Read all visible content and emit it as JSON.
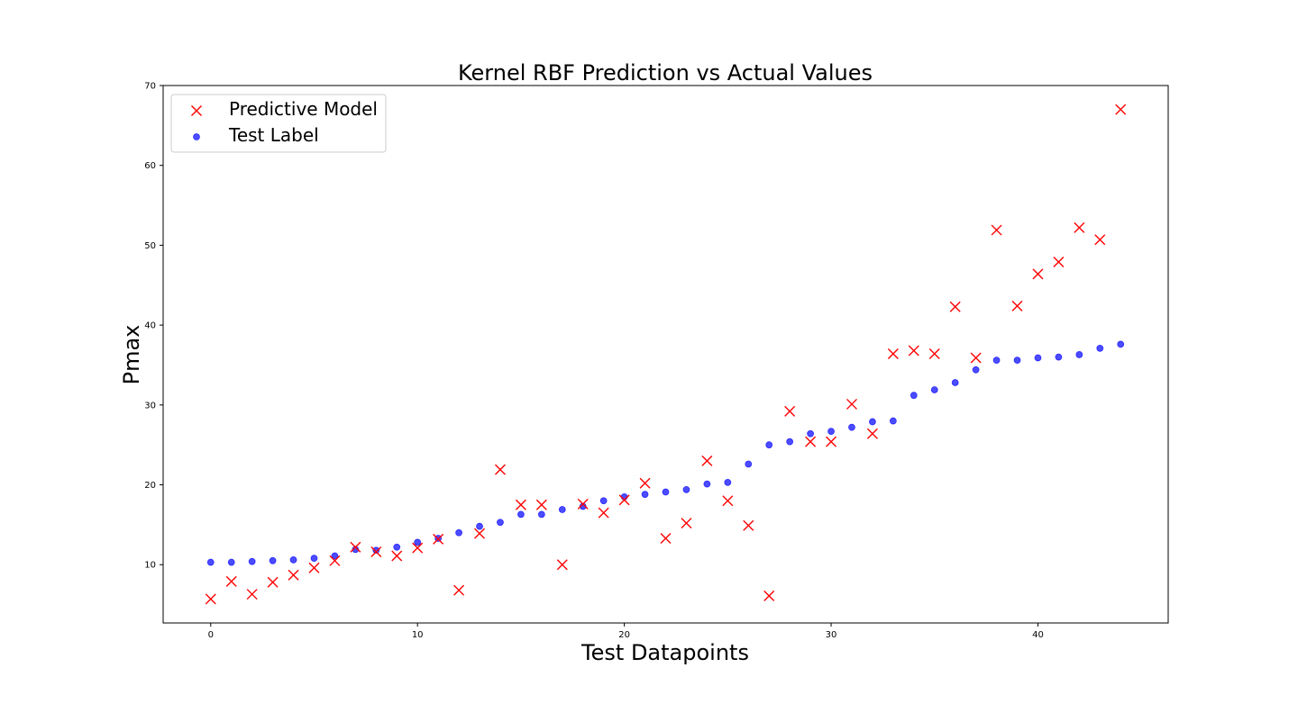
{
  "chart_data": {
    "type": "scatter",
    "title": "Kernel RBF Prediction vs Actual Values",
    "xlabel": "Test Datapoints",
    "ylabel": "Pmax",
    "xlim": [
      -2.3,
      46.3
    ],
    "ylim": [
      2.7,
      70
    ],
    "xticks": [
      0,
      10,
      20,
      30,
      40
    ],
    "yticks": [
      10,
      20,
      30,
      40,
      50,
      60,
      70
    ],
    "legend_position": "upper-left",
    "grid": false,
    "series": [
      {
        "name": "Predictive Model",
        "marker": "x",
        "color": "#ff0000",
        "x": [
          0,
          1,
          2,
          3,
          4,
          5,
          6,
          7,
          8,
          9,
          10,
          11,
          12,
          13,
          14,
          15,
          16,
          17,
          18,
          19,
          20,
          21,
          22,
          23,
          24,
          25,
          26,
          27,
          28,
          29,
          30,
          31,
          32,
          33,
          34,
          35,
          36,
          37,
          38,
          39,
          40,
          41,
          42,
          43,
          44
        ],
        "y": [
          5.7,
          7.9,
          6.3,
          7.8,
          8.7,
          9.6,
          10.5,
          12.2,
          11.6,
          11.1,
          12.1,
          13.2,
          6.8,
          13.9,
          21.9,
          17.5,
          17.5,
          10.0,
          17.6,
          16.5,
          18.1,
          20.2,
          13.3,
          15.2,
          23.0,
          18.0,
          14.9,
          6.1,
          29.2,
          25.4,
          25.4,
          30.1,
          26.4,
          36.4,
          36.8,
          36.4,
          42.3,
          35.9,
          51.9,
          42.4,
          46.4,
          47.9,
          52.2,
          50.7,
          67.0
        ]
      },
      {
        "name": "Test Label",
        "marker": "o",
        "color": "#0000ff",
        "x": [
          0,
          1,
          2,
          3,
          4,
          5,
          6,
          7,
          8,
          9,
          10,
          11,
          12,
          13,
          14,
          15,
          16,
          17,
          18,
          19,
          20,
          21,
          22,
          23,
          24,
          25,
          26,
          27,
          28,
          29,
          30,
          31,
          32,
          33,
          34,
          35,
          36,
          37,
          38,
          39,
          40,
          41,
          42,
          43,
          44
        ],
        "y": [
          10.3,
          10.3,
          10.4,
          10.5,
          10.6,
          10.8,
          11.1,
          11.9,
          11.8,
          12.2,
          12.8,
          13.3,
          14.0,
          14.8,
          15.3,
          16.3,
          16.3,
          16.9,
          17.3,
          18.0,
          18.5,
          18.8,
          19.1,
          19.4,
          20.1,
          20.3,
          22.6,
          25.0,
          25.4,
          26.4,
          26.7,
          27.2,
          27.9,
          28.0,
          31.2,
          31.9,
          32.8,
          34.4,
          35.6,
          35.6,
          35.9,
          36.0,
          36.3,
          37.1,
          37.6
        ]
      }
    ]
  }
}
